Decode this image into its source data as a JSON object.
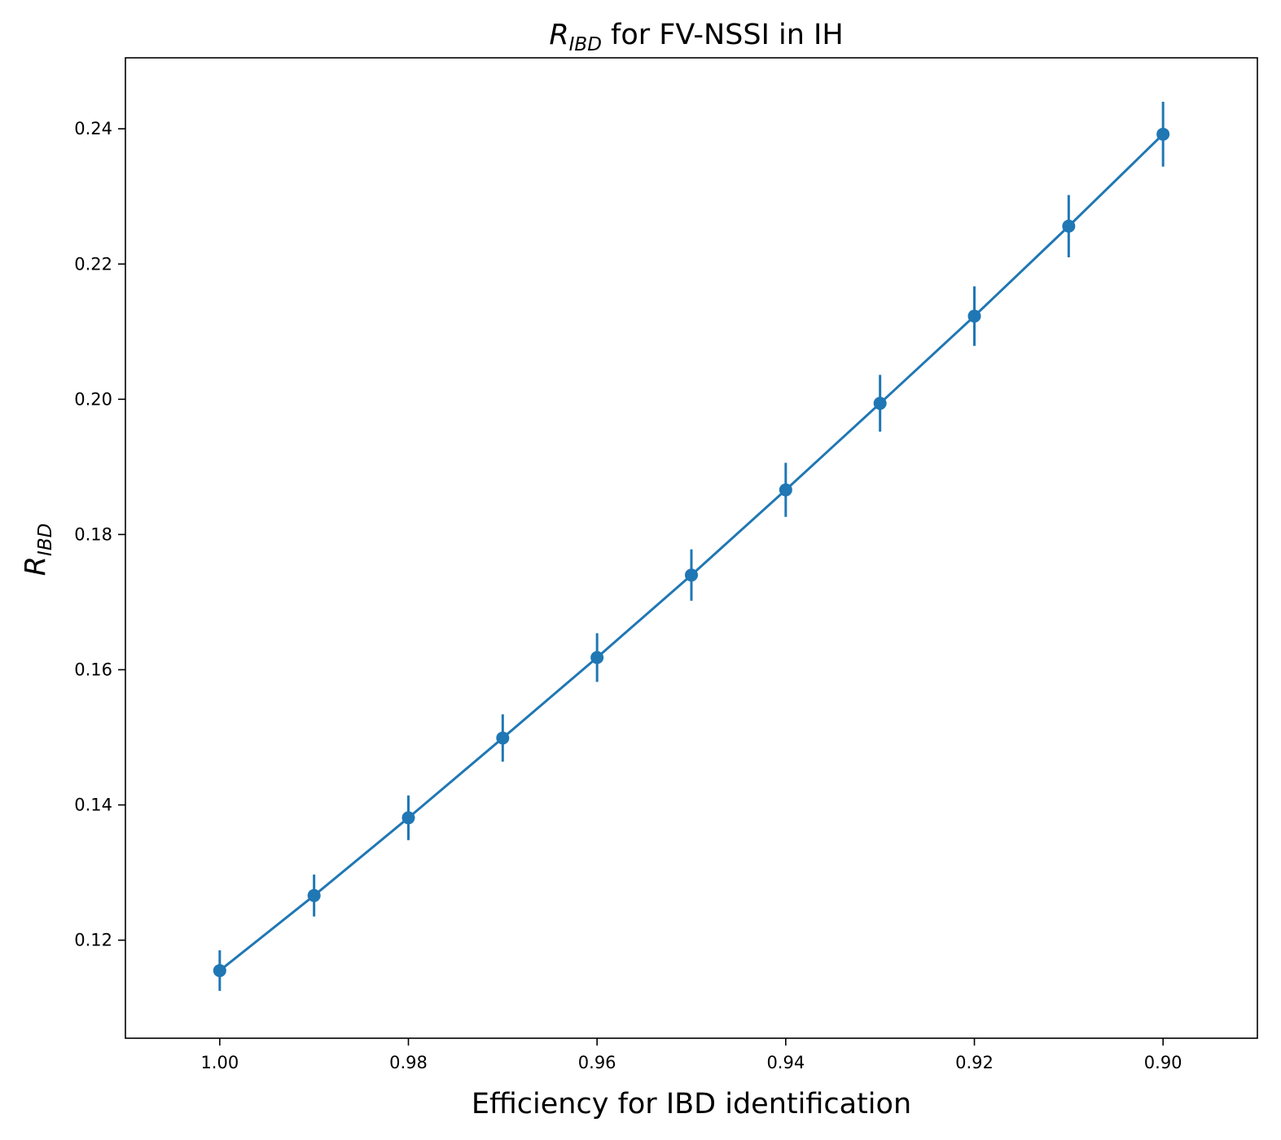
{
  "chart_data": {
    "type": "line",
    "title": {
      "symbol": "R",
      "subscript": "IBD",
      "rest": " for FV-NSSI in IH"
    },
    "xlabel": "Efficiency for IBD identification",
    "ylabel": {
      "symbol": "R",
      "subscript": "IBD"
    },
    "x_reversed": true,
    "xlim": [
      1.01,
      0.89
    ],
    "ylim": [
      0.1055,
      0.2505
    ],
    "xticks": [
      1.0,
      0.98,
      0.96,
      0.94,
      0.92,
      0.9
    ],
    "xtick_labels": [
      "1.00",
      "0.98",
      "0.96",
      "0.94",
      "0.92",
      "0.90"
    ],
    "yticks": [
      0.12,
      0.14,
      0.16,
      0.18,
      0.2,
      0.22,
      0.24
    ],
    "ytick_labels": [
      "0.12",
      "0.14",
      "0.16",
      "0.18",
      "0.20",
      "0.22",
      "0.24"
    ],
    "grid": false,
    "series": [
      {
        "color": "#1f77b4",
        "x": [
          1.0,
          0.99,
          0.98,
          0.97,
          0.96,
          0.95,
          0.94,
          0.93,
          0.92,
          0.91,
          0.9
        ],
        "y": [
          0.1155,
          0.1266,
          0.1381,
          0.1499,
          0.1618,
          0.174,
          0.1866,
          0.1994,
          0.2123,
          0.2256,
          0.2392
        ],
        "yerr": [
          0.003,
          0.0031,
          0.0033,
          0.0035,
          0.0036,
          0.0038,
          0.004,
          0.0042,
          0.0044,
          0.0046,
          0.0048
        ]
      }
    ]
  }
}
